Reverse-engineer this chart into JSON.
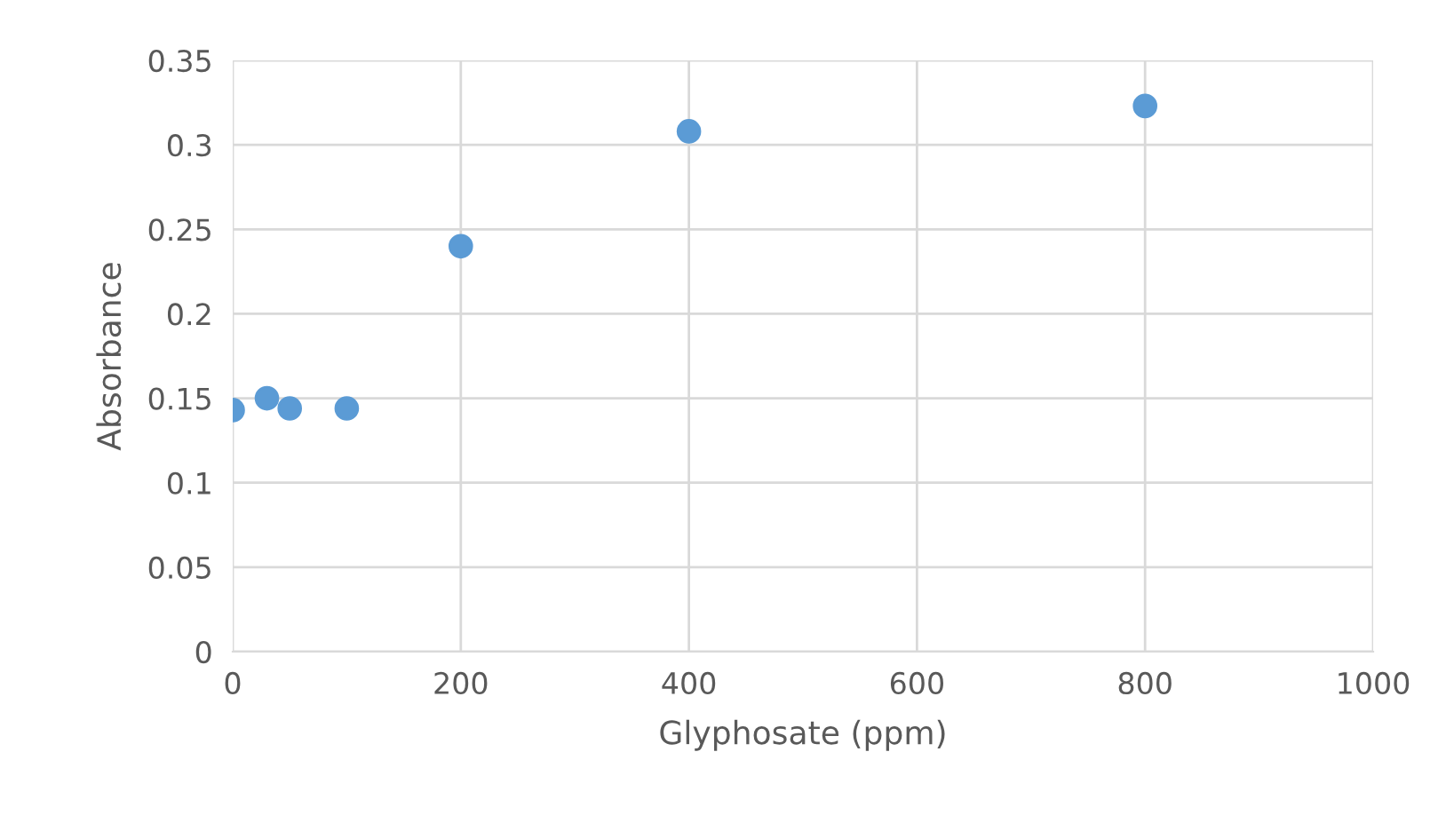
{
  "chart_data": {
    "type": "scatter",
    "xlabel": "Glyphosate (ppm)",
    "ylabel": "Absorbance",
    "x": [
      0,
      30,
      50,
      100,
      200,
      400,
      800
    ],
    "series": [
      {
        "color": "#5b9bd5",
        "values": [
          0.143,
          0.15,
          0.144,
          0.144,
          0.24,
          0.308,
          0.323
        ]
      }
    ],
    "xlim": [
      0,
      1000
    ],
    "xticks": [
      0,
      200,
      400,
      600,
      800,
      1000
    ],
    "ylim": [
      0,
      0.35
    ],
    "yticks": [
      {
        "value": 0,
        "label": "0"
      },
      {
        "value": 0.05,
        "label": "0.05"
      },
      {
        "value": 0.1,
        "label": "0.1"
      },
      {
        "value": 0.15,
        "label": "0.15"
      },
      {
        "value": 0.2,
        "label": "0.2"
      },
      {
        "value": 0.25,
        "label": "0.25"
      },
      {
        "value": 0.3,
        "label": "0.3"
      },
      {
        "value": 0.35,
        "label": "0.35"
      }
    ],
    "grid": true,
    "marker": "circle"
  }
}
